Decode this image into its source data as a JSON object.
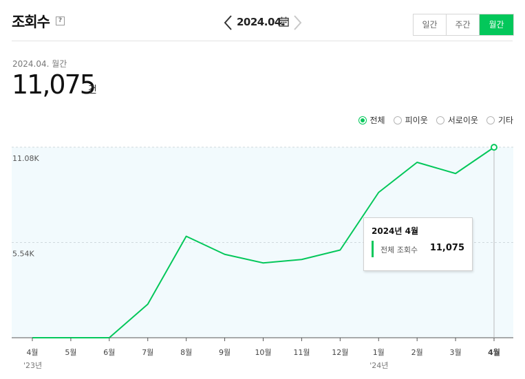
{
  "header": {
    "title": "조회수",
    "help_glyph": "?",
    "date_label": "2024.04.",
    "tabs": [
      {
        "label": "일간",
        "active": false
      },
      {
        "label": "주간",
        "active": false
      },
      {
        "label": "월간",
        "active": true
      }
    ]
  },
  "summary": {
    "period": "2024.04. 월간",
    "total": "11,075",
    "unit": "건"
  },
  "legend": [
    {
      "label": "전체",
      "selected": true
    },
    {
      "label": "피이웃",
      "selected": false
    },
    {
      "label": "서로이웃",
      "selected": false
    },
    {
      "label": "기타",
      "selected": false
    }
  ],
  "tooltip": {
    "title": "2024년 4월",
    "series_label": "전체 조회수",
    "value": "11,075"
  },
  "colors": {
    "accent": "#03c75a",
    "plot_bg": "#f2fafd"
  },
  "chart_data": {
    "type": "line",
    "x": [
      "4월",
      "5월",
      "6월",
      "7월",
      "8월",
      "9월",
      "10월",
      "11월",
      "12월",
      "1월",
      "2월",
      "3월",
      "4월"
    ],
    "year_labels": [
      {
        "index": 0,
        "label": "'23년"
      },
      {
        "index": 9,
        "label": "'24년"
      }
    ],
    "series": [
      {
        "values": [
          0,
          0,
          0,
          1950,
          5900,
          4850,
          4350,
          4550,
          5100,
          8450,
          10200,
          9550,
          11075
        ]
      }
    ],
    "ytick_labels": [
      "5.54K",
      "11.08K"
    ],
    "yticks": [
      5540,
      11080
    ],
    "ylim": [
      0,
      11080
    ],
    "grid": true,
    "highlighted_index": 12
  }
}
